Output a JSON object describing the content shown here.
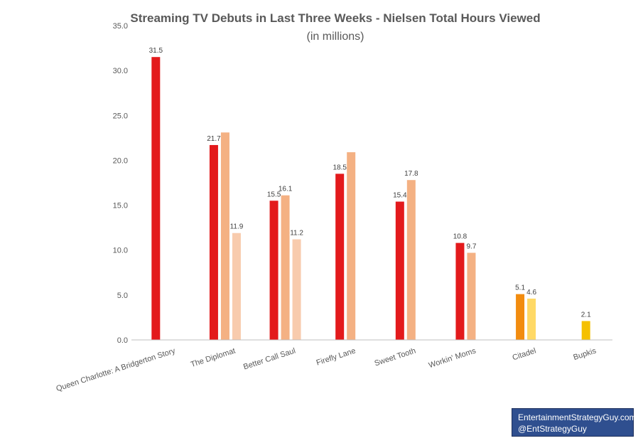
{
  "chart_data": {
    "type": "bar",
    "title": "Streaming TV Debuts in Last Three Weeks - Nielsen Total Hours Viewed",
    "subtitle": "(in millions)",
    "ylim": [
      0,
      35
    ],
    "yticks": [
      "0.0",
      "5.0",
      "10.0",
      "15.0",
      "20.0",
      "25.0",
      "30.0",
      "35.0"
    ],
    "grid": false,
    "categories": [
      "Queen Charlotte: A Bridgerton Story",
      "The Diplomat",
      "Better Call Saul",
      "Firefly Lane",
      "Sweet Tooth",
      "Workin' Moms",
      "Citadel",
      "Bupkis"
    ],
    "groups": [
      {
        "bars": [
          {
            "value": 31.5,
            "label": "31.5",
            "color": "#e31a1c"
          }
        ]
      },
      {
        "bars": [
          {
            "value": 21.7,
            "label": "21.7",
            "color": "#e31a1c"
          },
          {
            "value": 23.1,
            "label": "",
            "color": "#f4b183"
          },
          {
            "value": 11.9,
            "label": "11.9",
            "color": "#f8cbad"
          }
        ]
      },
      {
        "bars": [
          {
            "value": 15.5,
            "label": "15.5",
            "color": "#e31a1c"
          },
          {
            "value": 16.1,
            "label": "16.1",
            "color": "#f4b183"
          },
          {
            "value": 11.2,
            "label": "11.2",
            "color": "#f8cbad"
          }
        ]
      },
      {
        "bars": [
          {
            "value": 18.5,
            "label": "18.5",
            "color": "#e31a1c"
          },
          {
            "value": 20.9,
            "label": "",
            "color": "#f4b183"
          }
        ]
      },
      {
        "bars": [
          {
            "value": 15.4,
            "label": "15.4",
            "color": "#e31a1c"
          },
          {
            "value": 17.8,
            "label": "17.8",
            "color": "#f4b183"
          }
        ]
      },
      {
        "bars": [
          {
            "value": 10.8,
            "label": "10.8",
            "color": "#e31a1c"
          },
          {
            "value": 9.7,
            "label": "9.7",
            "color": "#f4b183"
          }
        ]
      },
      {
        "bars": [
          {
            "value": 5.1,
            "label": "5.1",
            "color": "#f28c0f"
          },
          {
            "value": 4.6,
            "label": "4.6",
            "color": "#ffd966"
          }
        ]
      },
      {
        "bars": [
          {
            "value": 2.1,
            "label": "2.1",
            "color": "#f5c000"
          }
        ]
      }
    ]
  },
  "credit": {
    "line1": "EntertainmentStrategyGuy.com",
    "line2": "@EntStrategyGuy"
  }
}
